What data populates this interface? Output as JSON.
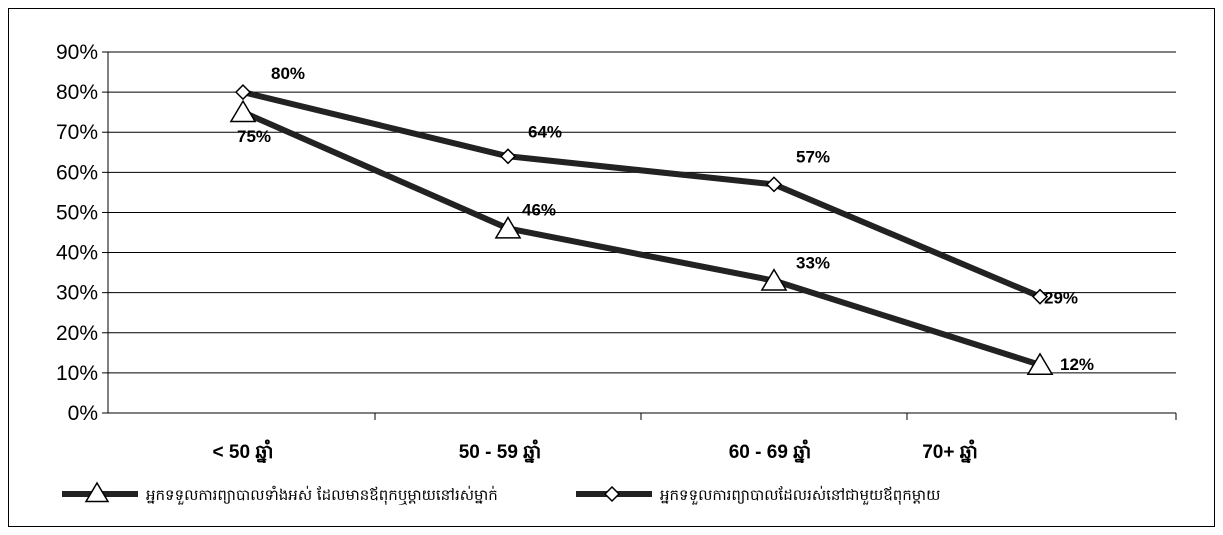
{
  "chart_data": {
    "type": "line",
    "categories": [
      "< 50 ឆ្នាំ",
      "50 - 59 ឆ្នាំ",
      "60 - 69 ឆ្នាំ",
      "70+ ឆ្នាំ"
    ],
    "yticks": [
      "0%",
      "10%",
      "20%",
      "30%",
      "40%",
      "50%",
      "60%",
      "70%",
      "80%",
      "90%"
    ],
    "ylim": [
      0,
      90
    ],
    "grid": true,
    "legend_position": "bottom",
    "series": [
      {
        "name": "អ្នកទទួលការព្យាបាលទាំងអស់ ដែលមានឪពុកឬម្ដាយនៅរស់ម្នាក់",
        "marker": "triangle",
        "values": [
          75,
          46,
          33,
          12
        ],
        "labels": [
          "75%",
          "46%",
          "33%",
          "12%"
        ]
      },
      {
        "name": "អ្នកទទួលការព្យាបាលដែលរស់នៅជាមួយឪពុកម្ដាយ",
        "marker": "diamond",
        "values": [
          80,
          64,
          57,
          29
        ],
        "labels": [
          "80%",
          "64%",
          "57%",
          "29%"
        ]
      }
    ],
    "colors": {
      "line": "#222222",
      "grid": "#000000",
      "marker_fill": "#ffffff"
    }
  }
}
